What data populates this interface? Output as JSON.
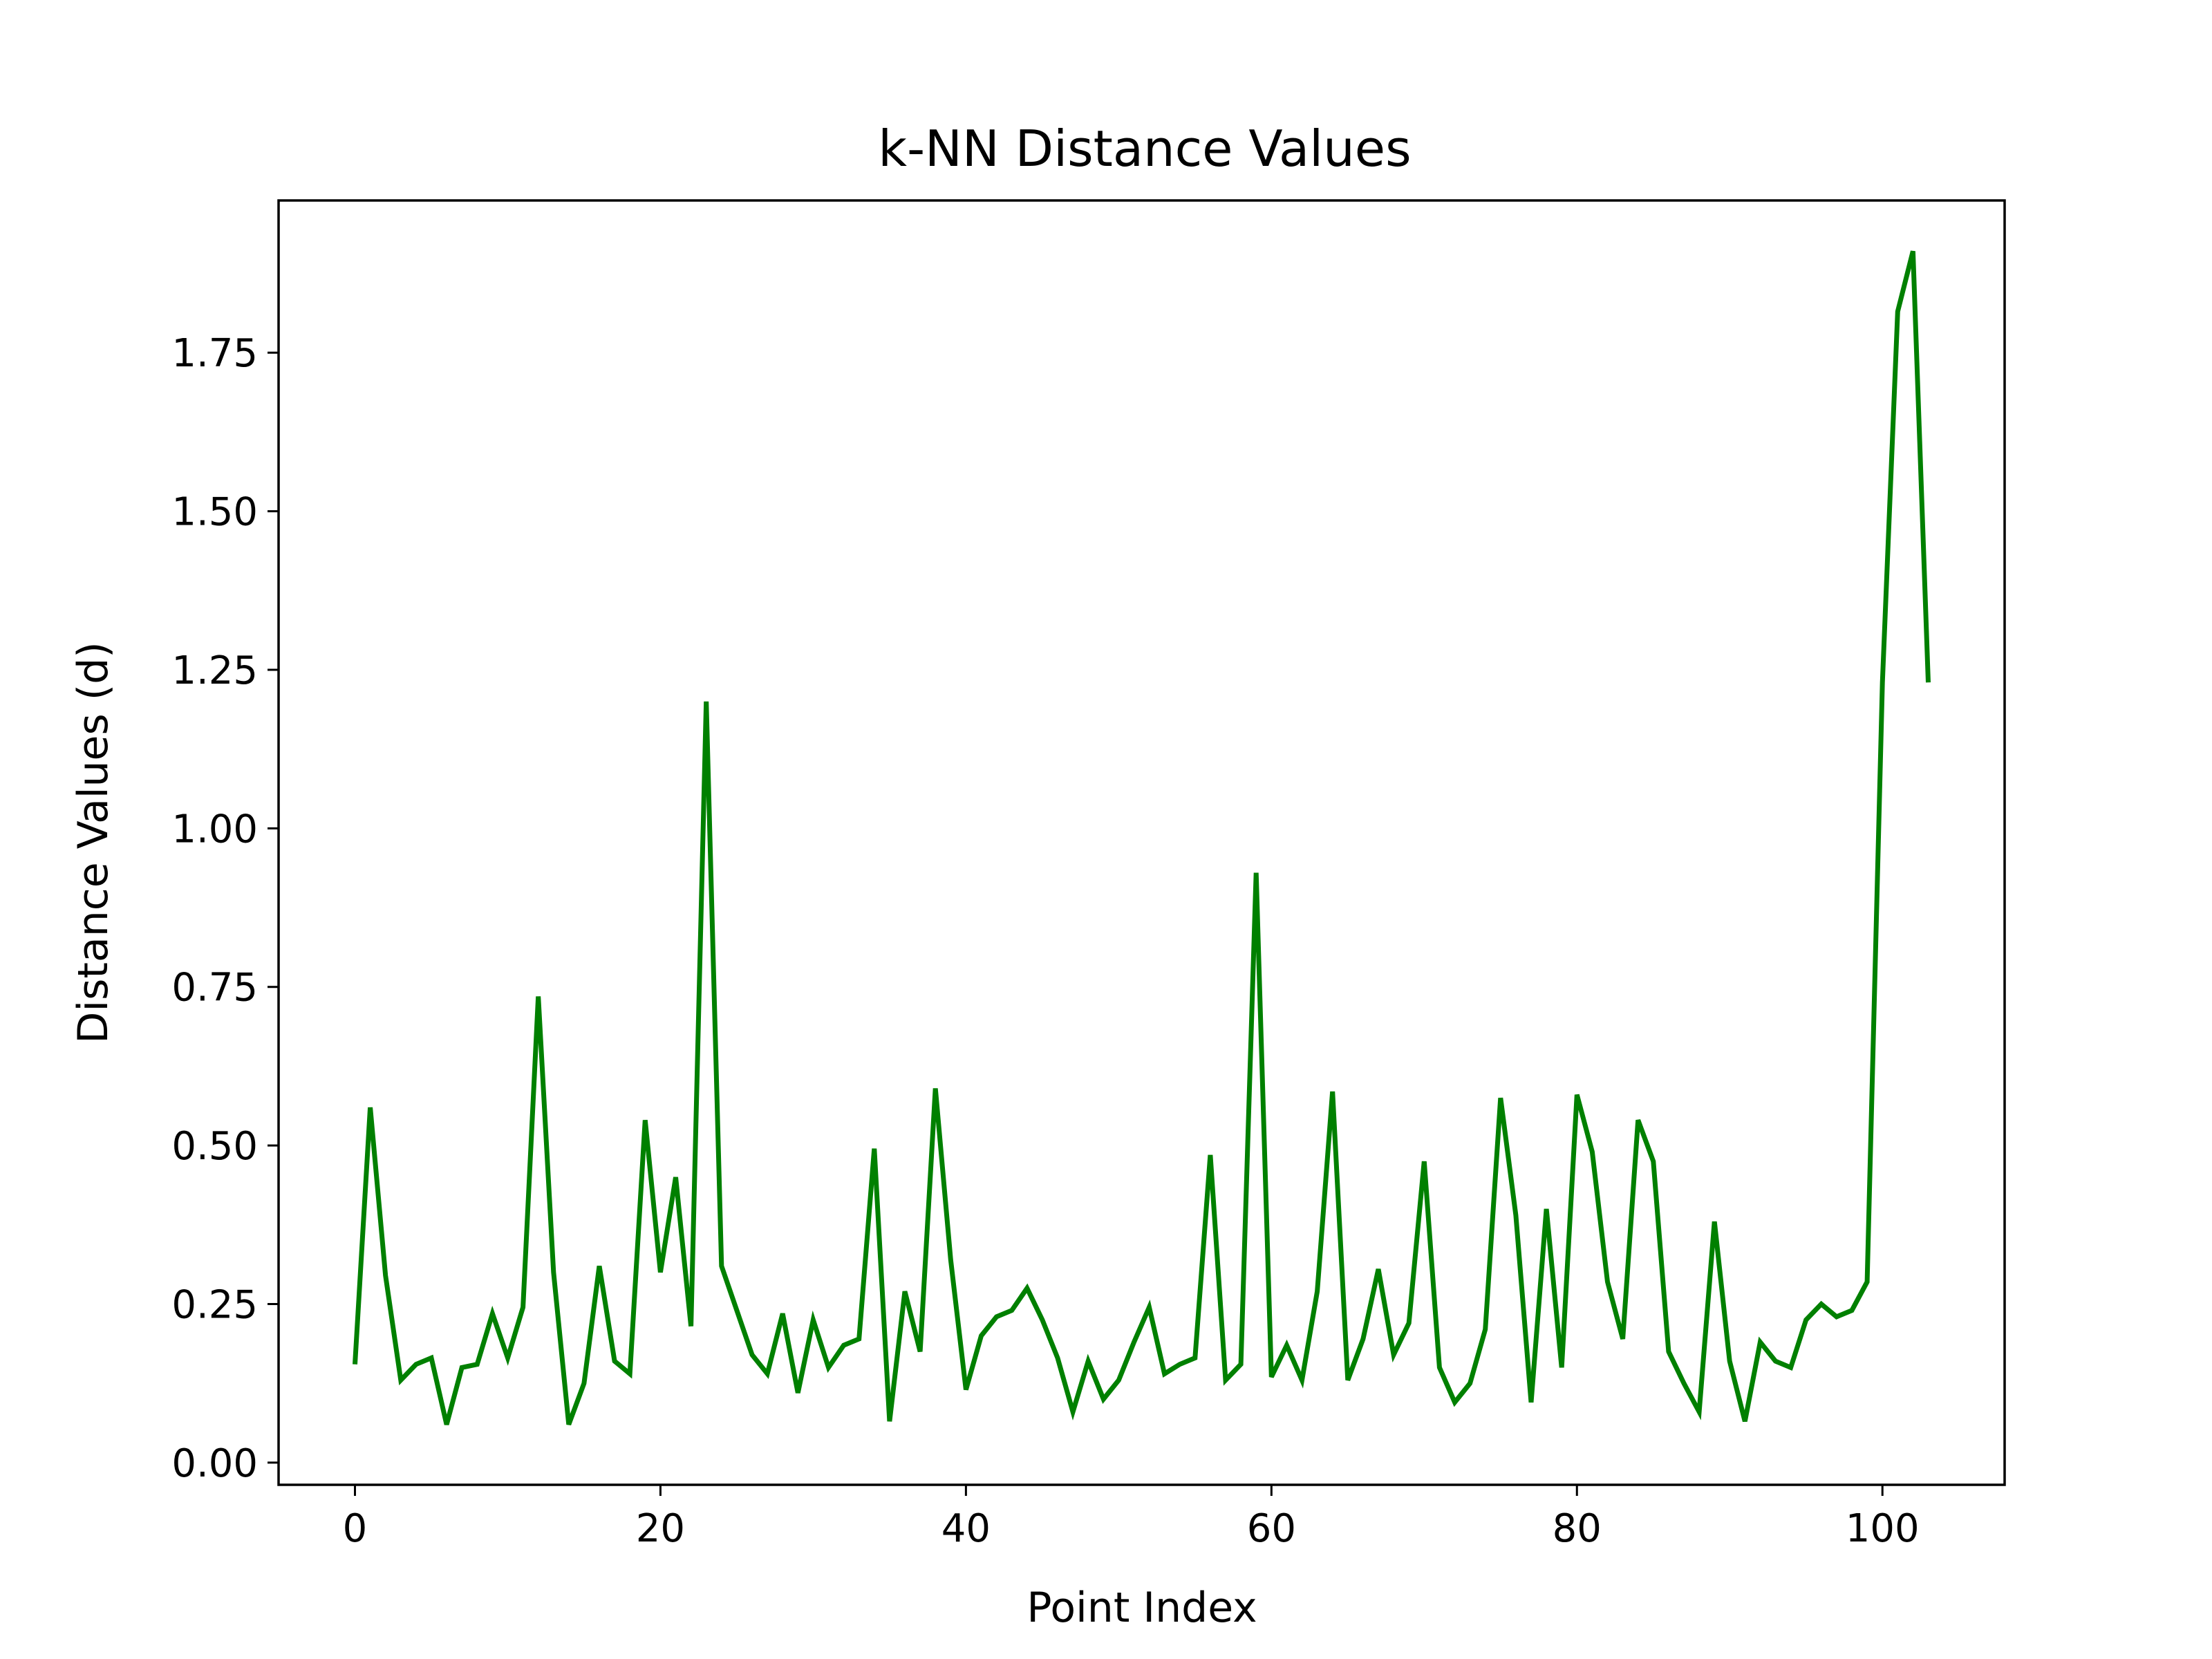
{
  "chart_data": {
    "type": "line",
    "title": "k-NN Distance Values",
    "xlabel": "Point Index",
    "ylabel": "Distance Values (d)",
    "xlim": [
      -5,
      108
    ],
    "ylim": [
      -0.035,
      1.99
    ],
    "xticks": [
      0,
      20,
      40,
      60,
      80,
      100
    ],
    "xtick_labels": [
      "0",
      "20",
      "40",
      "60",
      "80",
      "100"
    ],
    "yticks": [
      0,
      0.25,
      0.5,
      0.75,
      1.0,
      1.25,
      1.5,
      1.75
    ],
    "ytick_labels": [
      "0.00",
      "0.25",
      "0.50",
      "0.75",
      "1.00",
      "1.25",
      "1.50",
      "1.75"
    ],
    "grid": false,
    "line_color": "#008000",
    "series": [
      {
        "x": [
          0,
          1,
          2,
          3,
          4,
          5,
          6,
          7,
          8,
          9,
          10,
          11,
          12,
          13,
          14,
          15,
          16,
          17,
          18,
          19,
          20,
          21,
          22,
          23,
          24,
          25,
          26,
          27,
          28,
          29,
          30,
          31,
          32,
          33,
          34,
          35,
          36,
          37,
          38,
          39,
          40,
          41,
          42,
          43,
          44,
          45,
          46,
          47,
          48,
          49,
          50,
          51,
          52,
          53,
          54,
          55,
          56,
          57,
          58,
          59,
          60,
          61,
          62,
          63,
          64,
          65,
          66,
          67,
          68,
          69,
          70,
          71,
          72,
          73,
          74,
          75,
          76,
          77,
          78,
          79,
          80,
          81,
          82,
          83,
          84,
          85,
          86,
          87,
          88,
          89,
          90,
          91,
          92,
          93,
          94,
          95,
          96,
          97,
          98,
          99,
          100,
          101,
          102,
          103
        ],
        "values": [
          0.155,
          0.56,
          0.295,
          0.13,
          0.155,
          0.165,
          0.06,
          0.15,
          0.155,
          0.235,
          0.165,
          0.245,
          0.735,
          0.3,
          0.06,
          0.125,
          0.31,
          0.16,
          0.14,
          0.54,
          0.3,
          0.45,
          0.215,
          1.2,
          0.31,
          0.24,
          0.17,
          0.14,
          0.235,
          0.11,
          0.225,
          0.15,
          0.185,
          0.195,
          0.495,
          0.065,
          0.27,
          0.175,
          0.59,
          0.32,
          0.115,
          0.2,
          0.23,
          0.24,
          0.275,
          0.225,
          0.165,
          0.08,
          0.16,
          0.1,
          0.13,
          0.19,
          0.245,
          0.14,
          0.155,
          0.165,
          0.485,
          0.13,
          0.155,
          0.93,
          0.135,
          0.185,
          0.13,
          0.27,
          0.585,
          0.13,
          0.195,
          0.305,
          0.17,
          0.22,
          0.475,
          0.15,
          0.095,
          0.125,
          0.21,
          0.575,
          0.39,
          0.095,
          0.4,
          0.15,
          0.58,
          0.49,
          0.285,
          0.195,
          0.54,
          0.475,
          0.175,
          0.125,
          0.08,
          0.38,
          0.16,
          0.065,
          0.19,
          0.16,
          0.15,
          0.225,
          0.25,
          0.23,
          0.24,
          0.285,
          1.23,
          1.815,
          1.91,
          1.23
        ]
      }
    ]
  }
}
